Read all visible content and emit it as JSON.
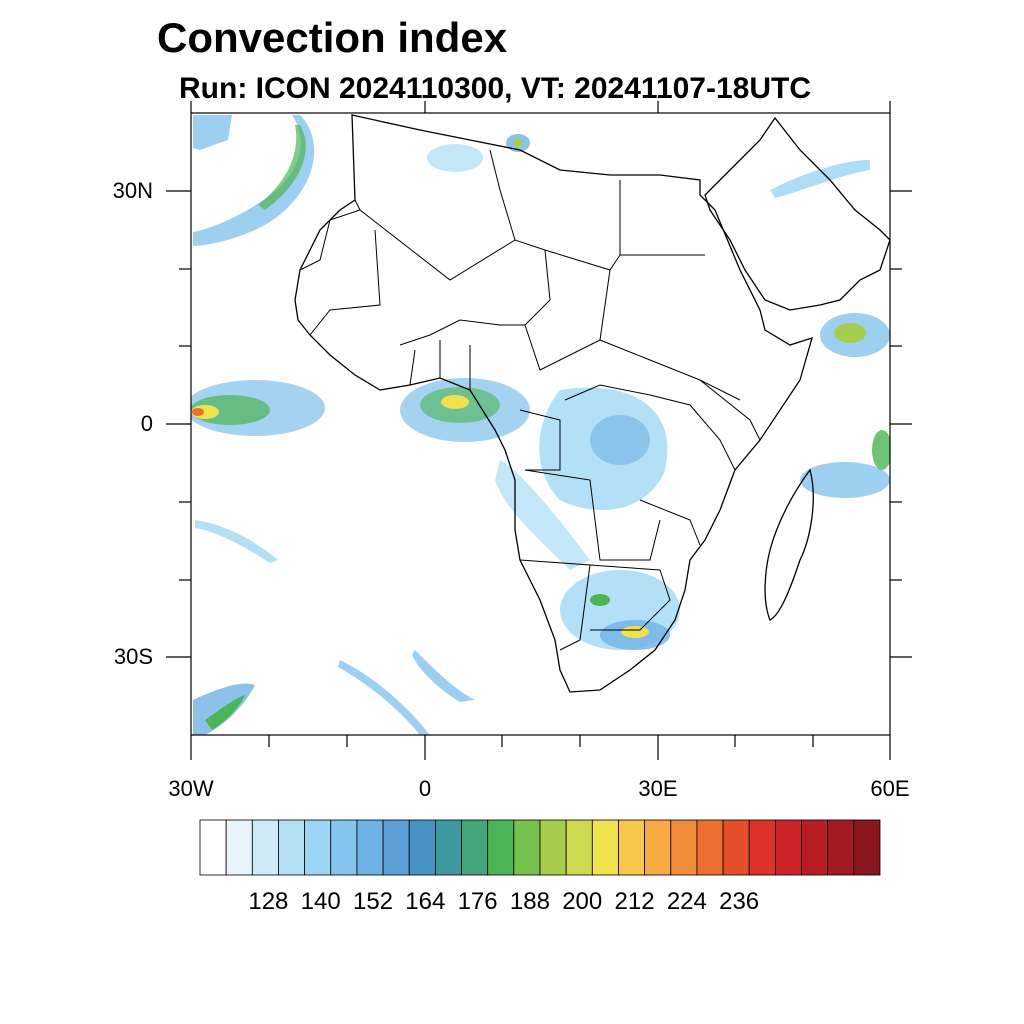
{
  "title": "Convection index",
  "subtitle": "Run: ICON 2024110300,  VT: 20241107-18UTC",
  "map": {
    "region": "Africa",
    "lon_range": [
      -30,
      60
    ],
    "lat_range": [
      -40,
      40
    ],
    "lat_labels": [
      {
        "text": "30N",
        "lat": 30
      },
      {
        "text": "0",
        "lat": 0
      },
      {
        "text": "30S",
        "lat": -30
      }
    ],
    "lon_labels": [
      {
        "text": "30W",
        "lon": -30
      },
      {
        "text": "0",
        "lon": 0
      },
      {
        "text": "30E",
        "lon": 30
      },
      {
        "text": "60E",
        "lon": 60
      }
    ]
  },
  "colorbar": {
    "colors": [
      "#ffffff",
      "#e8f5fc",
      "#cdeaf8",
      "#b4e0f6",
      "#9bd5f4",
      "#85c4ec",
      "#6fb2e4",
      "#5a9fd8",
      "#4892c6",
      "#3f9aa0",
      "#43a77a",
      "#4bb454",
      "#78c04e",
      "#a6cd4e",
      "#cfd94f",
      "#f0e14f",
      "#f8c84a",
      "#f8ab42",
      "#f38c38",
      "#ee6e2f",
      "#e54e2a",
      "#dc3227",
      "#cc2326",
      "#b81d25",
      "#a21a22",
      "#8a161e"
    ],
    "labels": [
      "128",
      "140",
      "152",
      "164",
      "176",
      "188",
      "200",
      "212",
      "224",
      "236"
    ]
  }
}
